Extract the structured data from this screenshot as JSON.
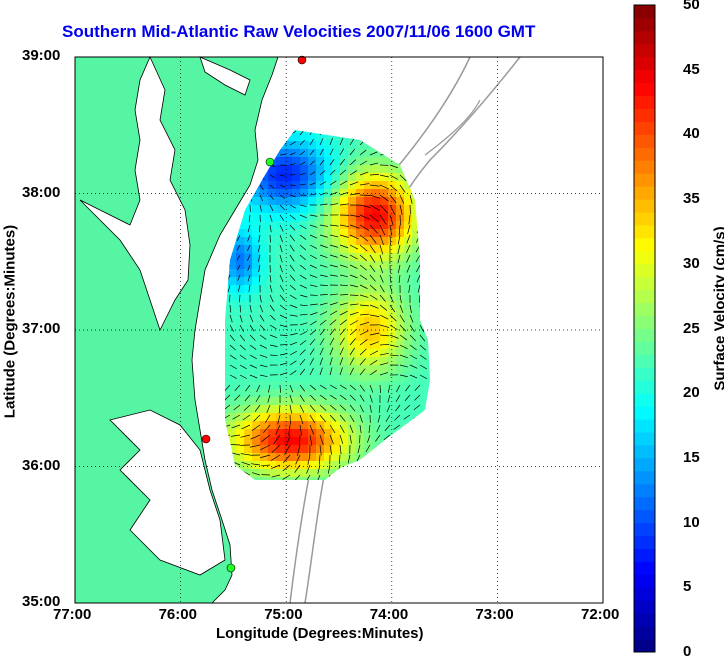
{
  "chart_data": {
    "type": "heatmap",
    "title": "Southern Mid-Atlantic Raw Velocities 2007/11/06 1600 GMT",
    "xlabel": "Longitude (Degrees:Minutes)",
    "ylabel": "Latitude (Degrees:Minutes)",
    "colorbar_label": "Surface Velocity (cm/s)",
    "x_ticks": [
      "77:00",
      "76:00",
      "75:00",
      "74:00",
      "73:00",
      "72:00"
    ],
    "y_ticks": [
      "35:00",
      "36:00",
      "37:00",
      "38:00",
      "39:00"
    ],
    "colorbar_ticks": [
      "0",
      "5",
      "10",
      "15",
      "20",
      "25",
      "30",
      "35",
      "40",
      "45",
      "50"
    ],
    "xlim": [
      -77,
      -72
    ],
    "ylim": [
      35,
      39
    ],
    "clim": [
      0,
      50
    ],
    "grid": true,
    "colors": {
      "land": "#55f5a3",
      "title": "#0000ee"
    }
  }
}
